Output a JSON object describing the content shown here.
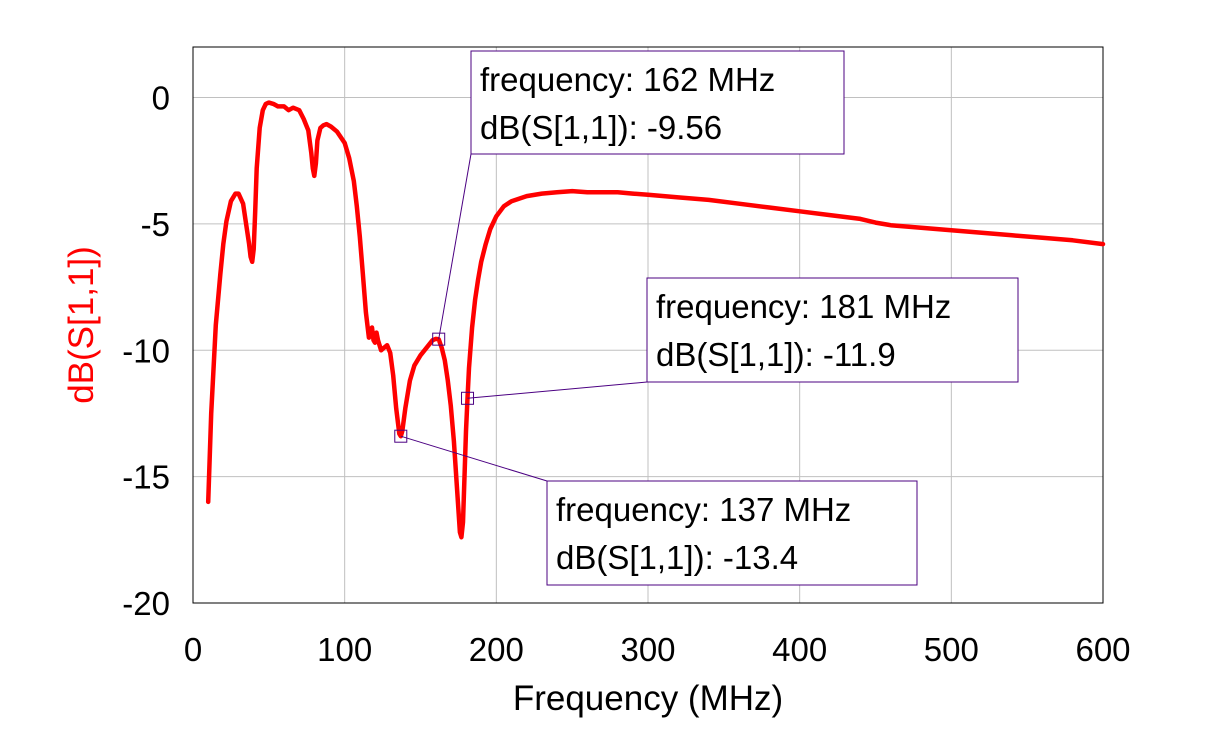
{
  "chart_data": {
    "type": "line",
    "xlabel": "Frequency (MHz)",
    "ylabel": "dB(S[1,1])",
    "xlim": [
      0,
      600
    ],
    "ylim": [
      -20,
      2
    ],
    "xticks": [
      0,
      100,
      200,
      300,
      400,
      500,
      600
    ],
    "yticks": [
      0,
      -5,
      -10,
      -15,
      -20
    ],
    "grid": true,
    "series": [
      {
        "name": "",
        "color": "#ff0000",
        "x": [
          10,
          12,
          15,
          18,
          20,
          22,
          25,
          28,
          30,
          33,
          35,
          37,
          38,
          39,
          40,
          41,
          42,
          44,
          46,
          48,
          50,
          53,
          56,
          60,
          63,
          66,
          70,
          73,
          76,
          78,
          79,
          80,
          81,
          82,
          84,
          86,
          88,
          91,
          95,
          100,
          103,
          106,
          108,
          110,
          112,
          114,
          116,
          117,
          118,
          119,
          120,
          121,
          122,
          124,
          126,
          128,
          130,
          132,
          134,
          136,
          137,
          138,
          140,
          143,
          146,
          150,
          154,
          158,
          160,
          162,
          164,
          166,
          168,
          170,
          172,
          174,
          176,
          177,
          178,
          179,
          180,
          181,
          182,
          184,
          186,
          188,
          190,
          193,
          196,
          200,
          205,
          210,
          220,
          230,
          240,
          250,
          260,
          270,
          280,
          290,
          300,
          320,
          340,
          360,
          380,
          400,
          420,
          440,
          450,
          460,
          480,
          500,
          520,
          540,
          560,
          580,
          600
        ],
        "y": [
          -16,
          -12.5,
          -9,
          -7,
          -5.8,
          -4.9,
          -4.1,
          -3.8,
          -3.8,
          -4.2,
          -5,
          -5.8,
          -6.3,
          -6.5,
          -6,
          -4.5,
          -2.8,
          -1.2,
          -0.5,
          -0.25,
          -0.2,
          -0.25,
          -0.35,
          -0.35,
          -0.5,
          -0.4,
          -0.5,
          -0.85,
          -1.3,
          -2.2,
          -2.8,
          -3.1,
          -2.6,
          -1.7,
          -1.2,
          -1.1,
          -1.05,
          -1.15,
          -1.35,
          -1.8,
          -2.4,
          -3.3,
          -4.3,
          -5.5,
          -7,
          -8.5,
          -9.5,
          -9.2,
          -9.1,
          -9.6,
          -9.7,
          -9.3,
          -9.6,
          -10,
          -9.9,
          -9.8,
          -10.1,
          -11,
          -12.3,
          -13.3,
          -13.4,
          -13.2,
          -12.3,
          -11.2,
          -10.6,
          -10.2,
          -9.9,
          -9.6,
          -9.55,
          -9.56,
          -9.9,
          -10.4,
          -11.2,
          -12.2,
          -13.6,
          -15.4,
          -17.2,
          -17.4,
          -16.8,
          -15,
          -13.2,
          -11.9,
          -10.7,
          -9.1,
          -8,
          -7.2,
          -6.5,
          -5.8,
          -5.2,
          -4.7,
          -4.3,
          -4.1,
          -3.9,
          -3.8,
          -3.75,
          -3.7,
          -3.75,
          -3.75,
          -3.75,
          -3.8,
          -3.85,
          -3.95,
          -4.05,
          -4.2,
          -4.35,
          -4.5,
          -4.65,
          -4.8,
          -4.95,
          -5.05,
          -5.15,
          -5.25,
          -5.35,
          -5.45,
          -5.55,
          -5.65,
          -5.8
        ]
      }
    ],
    "markers": [
      {
        "frequency": 162,
        "value": -9.56,
        "line1": "frequency: 162 MHz",
        "line2": "dB(S[1,1]): -9.56"
      },
      {
        "frequency": 181,
        "value": -11.9,
        "line1": "frequency: 181 MHz",
        "line2": "dB(S[1,1]): -11.9"
      },
      {
        "frequency": 137,
        "value": -13.4,
        "line1": "frequency: 137 MHz",
        "line2": "dB(S[1,1]): -13.4"
      }
    ]
  },
  "colors": {
    "curve": "#ff0000",
    "ylabel": "#ff0000",
    "grid": "#c0c0c0",
    "marker_box": "#4b0082"
  }
}
